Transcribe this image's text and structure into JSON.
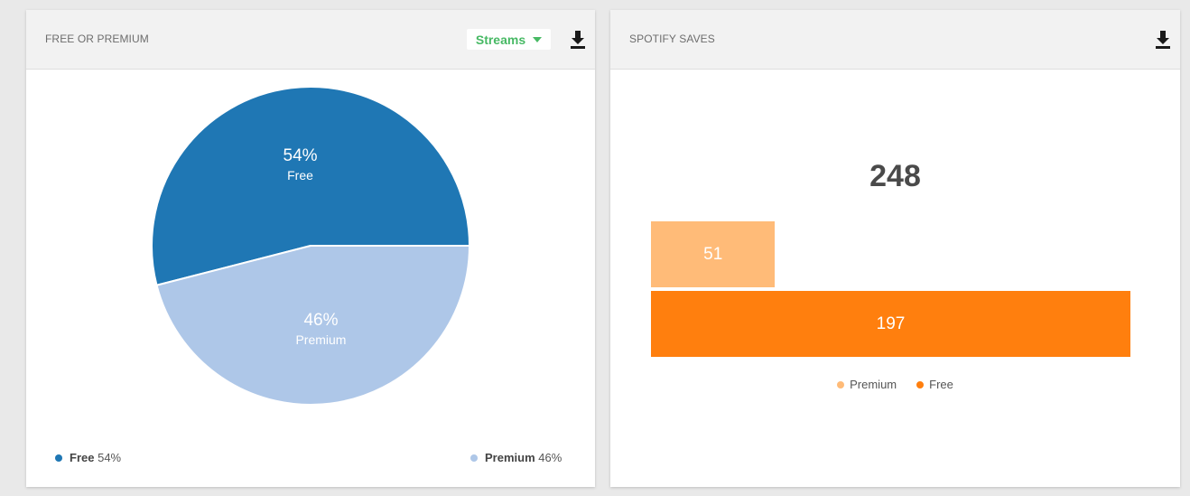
{
  "left_card": {
    "title": "FREE OR PREMIUM",
    "dropdown_label": "Streams",
    "download_icon": "download-icon"
  },
  "right_card": {
    "title": "SPOTIFY SAVES",
    "download_icon": "download-icon"
  },
  "chart_data": [
    {
      "type": "pie",
      "title": "",
      "slices": [
        {
          "label": "Free",
          "value": 54,
          "percent_label": "54%",
          "color": "#1f77b4"
        },
        {
          "label": "Premium",
          "value": 46,
          "percent_label": "46%",
          "color": "#aec7e8"
        }
      ],
      "legend": {
        "placement": "bottom",
        "items": [
          {
            "name": "Free",
            "value": "54%",
            "color": "#1f77b4"
          },
          {
            "name": "Premium",
            "value": "46%",
            "color": "#aec7e8"
          }
        ]
      }
    },
    {
      "type": "bar",
      "orientation": "horizontal",
      "total": "248",
      "categories": [
        "Premium",
        "Free"
      ],
      "values": [
        51,
        197
      ],
      "colors": [
        "#ffbb78",
        "#ff7f0e"
      ],
      "legend": {
        "placement": "bottom",
        "items": [
          {
            "name": "Premium",
            "color": "#ffbb78"
          },
          {
            "name": "Free",
            "color": "#ff7f0e"
          }
        ]
      }
    }
  ]
}
